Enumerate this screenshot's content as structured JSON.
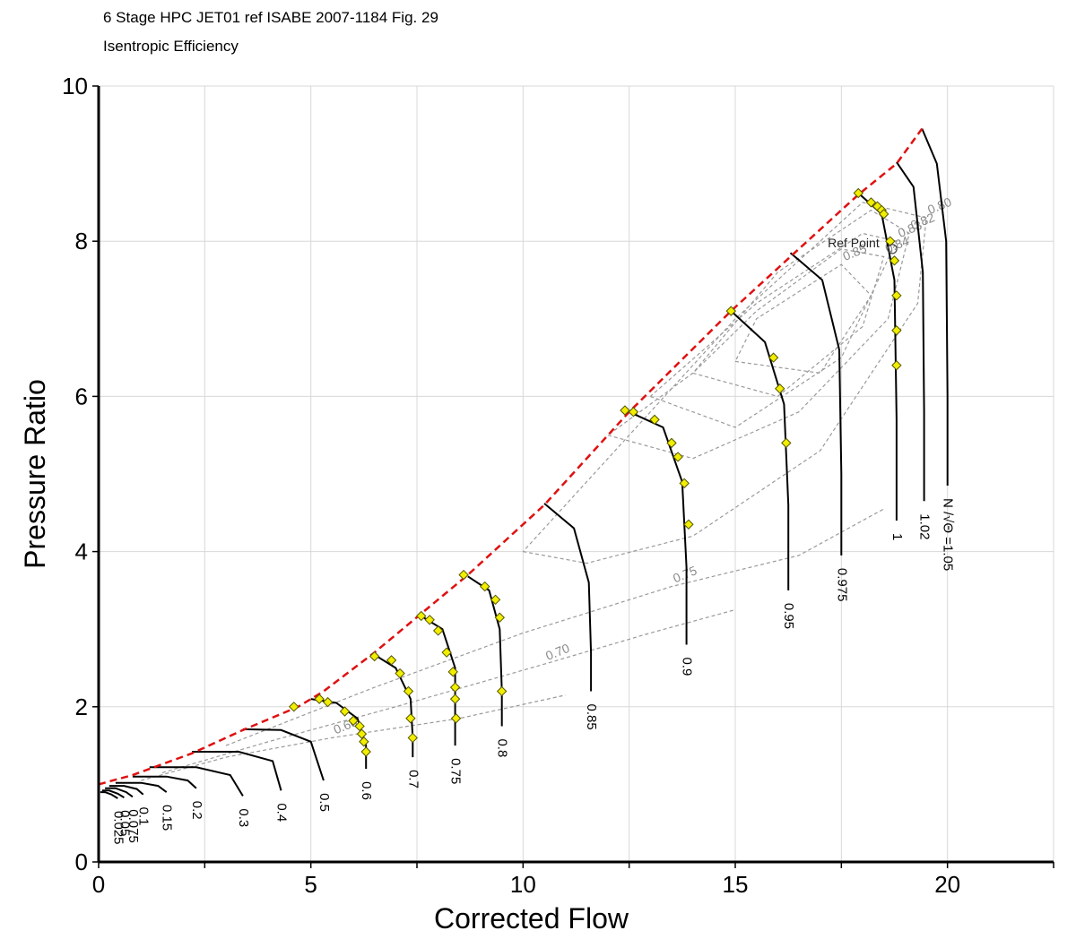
{
  "chart_data": {
    "type": "line",
    "title": "6 Stage HPC JET01 ref ISABE 2007-1184 Fig. 29",
    "subtitle": "Isentropic Efficiency",
    "xlabel": "Corrected Flow",
    "ylabel": "Pressure Ratio",
    "xlim": [
      0,
      22.5
    ],
    "ylim": [
      0,
      10
    ],
    "xticks": [
      0,
      5,
      10,
      15,
      20
    ],
    "yticks": [
      0,
      2,
      4,
      6,
      8,
      10
    ],
    "grid": true,
    "ref_point_label": "Ref Point",
    "ref_point": {
      "x": 18.7,
      "y": 7.9
    },
    "surge_line": {
      "x": [
        0,
        0.8,
        2.2,
        3.4,
        4.7,
        5.3,
        6.5,
        7.6,
        8.7,
        10.5,
        12.5,
        14.9,
        16.3,
        17.9,
        18.8,
        19.4
      ],
      "y": [
        1.0,
        1.12,
        1.4,
        1.7,
        2.0,
        2.2,
        2.7,
        3.2,
        3.7,
        4.6,
        5.8,
        7.1,
        7.8,
        8.6,
        9.0,
        9.45
      ]
    },
    "speed_lines": [
      {
        "label": "0.025",
        "x": [
          0.04,
          0.15,
          0.3,
          0.45
        ],
        "y": [
          0.9,
          0.9,
          0.87,
          0.82
        ]
      },
      {
        "label": "0.05",
        "x": [
          0.08,
          0.25,
          0.45,
          0.6
        ],
        "y": [
          0.92,
          0.92,
          0.88,
          0.83
        ]
      },
      {
        "label": "0.075",
        "x": [
          0.15,
          0.4,
          0.65,
          0.8
        ],
        "y": [
          0.95,
          0.95,
          0.9,
          0.84
        ]
      },
      {
        "label": "0.1",
        "x": [
          0.25,
          0.6,
          0.9,
          1.05
        ],
        "y": [
          0.98,
          0.98,
          0.94,
          0.87
        ]
      },
      {
        "label": "0.15",
        "x": [
          0.4,
          1.0,
          1.4,
          1.6
        ],
        "y": [
          1.02,
          1.02,
          0.98,
          0.9
        ]
      },
      {
        "label": "0.2",
        "x": [
          0.8,
          1.6,
          2.1,
          2.3
        ],
        "y": [
          1.1,
          1.1,
          1.05,
          0.95
        ]
      },
      {
        "label": "0.3",
        "x": [
          1.2,
          2.3,
          3.1,
          3.4
        ],
        "y": [
          1.22,
          1.22,
          1.12,
          0.85
        ]
      },
      {
        "label": "0.4",
        "x": [
          2.2,
          3.3,
          4.1,
          4.3
        ],
        "y": [
          1.42,
          1.42,
          1.3,
          0.92
        ]
      },
      {
        "label": "0.5",
        "x": [
          3.4,
          4.3,
          5.0,
          5.3
        ],
        "y": [
          1.71,
          1.7,
          1.55,
          1.05
        ]
      },
      {
        "label": "0.6",
        "x": [
          5.0,
          5.6,
          6.1,
          6.3,
          6.3
        ],
        "y": [
          2.1,
          2.05,
          1.85,
          1.5,
          1.2
        ]
      },
      {
        "label": "0.7",
        "x": [
          6.5,
          7.0,
          7.35,
          7.4,
          7.4
        ],
        "y": [
          2.67,
          2.5,
          2.1,
          1.6,
          1.35
        ]
      },
      {
        "label": "0.75",
        "x": [
          7.6,
          8.1,
          8.4,
          8.4,
          8.4
        ],
        "y": [
          3.17,
          3.0,
          2.5,
          1.8,
          1.5
        ]
      },
      {
        "label": "0.8",
        "x": [
          8.7,
          9.2,
          9.45,
          9.5,
          9.5
        ],
        "y": [
          3.68,
          3.5,
          3.0,
          2.2,
          1.75
        ]
      },
      {
        "label": "0.85",
        "x": [
          10.5,
          11.2,
          11.55,
          11.6,
          11.6
        ],
        "y": [
          4.62,
          4.3,
          3.6,
          2.7,
          2.2
        ]
      },
      {
        "label": "0.9",
        "x": [
          12.5,
          13.3,
          13.75,
          13.85,
          13.85
        ],
        "y": [
          5.8,
          5.6,
          4.9,
          3.8,
          2.8
        ]
      },
      {
        "label": "0.95",
        "x": [
          14.9,
          15.7,
          16.15,
          16.25,
          16.25
        ],
        "y": [
          7.1,
          6.7,
          5.9,
          4.6,
          3.5
        ]
      },
      {
        "label": "0.975",
        "x": [
          16.3,
          17.05,
          17.45,
          17.5,
          17.5
        ],
        "y": [
          7.85,
          7.5,
          6.6,
          5.0,
          3.95
        ]
      },
      {
        "label": "1",
        "x": [
          17.9,
          18.45,
          18.75,
          18.8,
          18.8
        ],
        "y": [
          8.62,
          8.35,
          7.5,
          5.7,
          4.4
        ]
      },
      {
        "label": "1.02",
        "x": [
          18.8,
          19.2,
          19.42,
          19.45,
          19.45
        ],
        "y": [
          9.02,
          8.7,
          7.6,
          5.8,
          4.65
        ]
      },
      {
        "label": "N /√Θ =1.05",
        "x": [
          19.4,
          19.75,
          19.97,
          20.0,
          20.0
        ],
        "y": [
          9.45,
          9.0,
          8.0,
          6.0,
          4.85
        ]
      }
    ],
    "efficiency_contours": [
      {
        "label": "0.60",
        "x": [
          1.0,
          3.0,
          5.5,
          8.5,
          11.0
        ],
        "y": [
          1.05,
          1.35,
          1.6,
          1.85,
          2.15
        ]
      },
      {
        "label": "0.70",
        "x": [
          1.5,
          4.0,
          7.0,
          10.5,
          13.0,
          15.0
        ],
        "y": [
          1.15,
          1.55,
          2.0,
          2.55,
          2.95,
          3.25
        ]
      },
      {
        "label": "0.75",
        "x": [
          3.0,
          6.5,
          10.0,
          13.5,
          16.5,
          18.5
        ],
        "y": [
          1.5,
          2.25,
          2.95,
          3.55,
          3.95,
          4.55
        ]
      },
      {
        "label": "0.80",
        "x": [
          10.0,
          11.5,
          14.0,
          17.0,
          19.3,
          19.5,
          18.0,
          15.0,
          12.0,
          10.0
        ],
        "y": [
          4.0,
          3.85,
          4.2,
          5.3,
          7.2,
          8.3,
          8.5,
          7.0,
          5.2,
          4.0
        ]
      },
      {
        "label": "0.82",
        "x": [
          12.0,
          14.0,
          16.5,
          18.6,
          19.1,
          18.2,
          16.0,
          14.0,
          12.0
        ],
        "y": [
          5.5,
          5.2,
          5.8,
          7.0,
          8.1,
          8.4,
          7.6,
          6.3,
          5.5
        ]
      },
      {
        "label": "0.83",
        "x": [
          13.0,
          15.0,
          17.5,
          18.8,
          18.0,
          15.5,
          13.0
        ],
        "y": [
          6.0,
          5.6,
          6.5,
          8.0,
          8.1,
          7.2,
          6.0
        ]
      },
      {
        "label": "0.84",
        "x": [
          14.0,
          16.0,
          18.0,
          18.5,
          17.5,
          15.5,
          14.0
        ],
        "y": [
          6.3,
          6.0,
          6.9,
          7.8,
          7.9,
          7.1,
          6.3
        ]
      },
      {
        "label": "0.85",
        "x": [
          15.0,
          17.0,
          18.2,
          17.5,
          15.5,
          15.0
        ],
        "y": [
          6.45,
          6.3,
          7.3,
          7.7,
          7.0,
          6.45
        ]
      }
    ],
    "measured_points": [
      {
        "x": [
          5.2,
          5.4,
          5.8,
          6.0,
          6.15,
          6.2,
          6.25,
          6.3
        ],
        "y": [
          2.1,
          2.06,
          1.94,
          1.82,
          1.75,
          1.65,
          1.55,
          1.42
        ]
      },
      {
        "x": [
          4.6
        ],
        "y": [
          2.0
        ]
      },
      {
        "x": [
          6.5,
          6.9,
          7.1,
          7.3,
          7.35,
          7.4
        ],
        "y": [
          2.65,
          2.6,
          2.43,
          2.2,
          1.85,
          1.6
        ]
      },
      {
        "x": [
          7.6,
          7.8,
          8.0,
          8.2,
          8.35,
          8.4,
          8.4,
          8.42
        ],
        "y": [
          3.17,
          3.12,
          2.98,
          2.7,
          2.45,
          2.25,
          2.1,
          1.85
        ]
      },
      {
        "x": [
          8.6,
          9.1,
          9.35,
          9.45,
          9.5
        ],
        "y": [
          3.7,
          3.55,
          3.38,
          3.15,
          2.2
        ]
      },
      {
        "x": [
          12.4,
          12.6,
          13.1,
          13.5,
          13.65,
          13.8,
          13.9
        ],
        "y": [
          5.82,
          5.8,
          5.7,
          5.4,
          5.22,
          4.88,
          4.35
        ]
      },
      {
        "x": [
          14.9,
          15.9,
          16.05,
          16.2
        ],
        "y": [
          7.1,
          6.5,
          6.1,
          5.4
        ]
      },
      {
        "x": [
          17.9,
          18.2,
          18.35,
          18.45,
          18.5,
          18.65,
          18.75,
          18.8,
          18.8,
          18.8
        ],
        "y": [
          8.62,
          8.5,
          8.45,
          8.4,
          8.35,
          8.0,
          7.75,
          7.3,
          6.85,
          6.4
        ]
      }
    ]
  }
}
